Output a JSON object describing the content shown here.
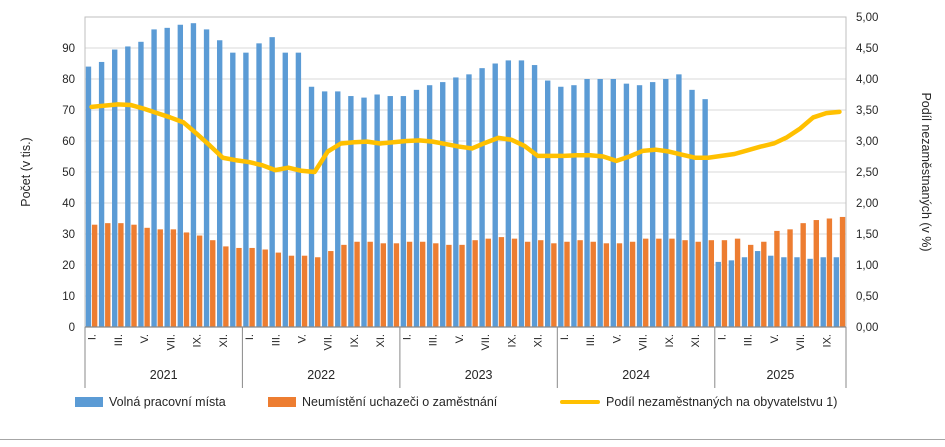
{
  "chart_data": {
    "type": "combo-bar-line",
    "title": "",
    "left_axis": {
      "title": "Počet (v tis.)",
      "min": 0,
      "max": 100,
      "step": 10,
      "tick_labels": [
        "0",
        "10",
        "20",
        "30",
        "40",
        "50",
        "60",
        "70",
        "80",
        "90"
      ]
    },
    "right_axis": {
      "title": "Podíl nezaměstnaných (v %)",
      "min": 0,
      "max": 5,
      "step": 0.5,
      "tick_labels": [
        "0,00",
        "0,50",
        "1,00",
        "1,50",
        "2,00",
        "2,50",
        "3,00",
        "3,50",
        "4,00",
        "4,50",
        "5,00"
      ]
    },
    "x_axis": {
      "years": [
        {
          "label": "2021",
          "months": 12
        },
        {
          "label": "2022",
          "months": 12
        },
        {
          "label": "2023",
          "months": 12
        },
        {
          "label": "2024",
          "months": 12
        },
        {
          "label": "2025",
          "months": 10
        }
      ],
      "tick_months": [
        1,
        3,
        5,
        7,
        9,
        11
      ],
      "tick_labels": [
        "I.",
        "III.",
        "V.",
        "VII.",
        "IX.",
        "XI."
      ]
    },
    "grid": true,
    "legend_position": "bottom",
    "series": [
      {
        "name": "Volná pracovní místa",
        "type": "bar",
        "axis": "left",
        "color": "#5B9BD5",
        "values": [
          84,
          85.5,
          89.5,
          90.5,
          92,
          96,
          96.5,
          97.5,
          98,
          96,
          92.5,
          88.5,
          88.5,
          91.5,
          93.5,
          88.5,
          88.5,
          77.5,
          76,
          76,
          74.5,
          74,
          75,
          74.5,
          74.5,
          76.5,
          78,
          79,
          80.5,
          81.5,
          83.5,
          85,
          86,
          86,
          84.5,
          79.5,
          77.5,
          78,
          80,
          80,
          80,
          78.5,
          78,
          79,
          80,
          81.5,
          76.5,
          73.5,
          21,
          21.5,
          22.5,
          24.5,
          23,
          22.5,
          22.5,
          22,
          22.5,
          22.5
        ]
      },
      {
        "name": "Neumístění uchazeči o zaměstnání",
        "type": "bar",
        "axis": "left",
        "color": "#ED7D31",
        "values": [
          33,
          33.5,
          33.5,
          33,
          32,
          31.5,
          31.5,
          30.5,
          29.5,
          28,
          26,
          25.5,
          25.5,
          25,
          24,
          23,
          23,
          22.5,
          24.5,
          26.5,
          27.5,
          27.5,
          27,
          27,
          27.5,
          27.5,
          27,
          26.5,
          26.5,
          28,
          28.5,
          29,
          28.5,
          27.5,
          28,
          27,
          27.5,
          28,
          27.5,
          27,
          27,
          27.5,
          28.5,
          28.5,
          28.5,
          28,
          27.5,
          28,
          28,
          28.5,
          26.5,
          27.5,
          31,
          31.5,
          33.5,
          34.5,
          35,
          35.5
        ]
      },
      {
        "name": "Podíl nezaměstnaných na obyvatelstvu 1)",
        "type": "line",
        "axis": "right",
        "color": "#FFC000",
        "values": [
          3.55,
          3.57,
          3.59,
          3.58,
          3.52,
          3.45,
          3.38,
          3.3,
          3.12,
          2.93,
          2.73,
          2.69,
          2.66,
          2.61,
          2.53,
          2.57,
          2.52,
          2.5,
          2.83,
          2.96,
          2.98,
          2.99,
          2.96,
          2.98,
          3.0,
          3.01,
          2.99,
          2.95,
          2.91,
          2.88,
          2.97,
          3.05,
          3.02,
          2.92,
          2.76,
          2.76,
          2.76,
          2.77,
          2.77,
          2.75,
          2.68,
          2.75,
          2.84,
          2.86,
          2.83,
          2.78,
          2.73,
          2.73,
          2.76,
          2.79,
          2.85,
          2.91,
          2.96,
          3.06,
          3.2,
          3.38,
          3.45,
          3.47
        ]
      }
    ],
    "colors": {
      "gridline": "#D9D9D9",
      "plot_border": "#BFBFBF",
      "axis_line": "#898989",
      "text": "#262626"
    }
  },
  "legend": {
    "items": [
      {
        "label": "Volná pracovní místa"
      },
      {
        "label": "Neumístění uchazeči o zaměstnání"
      },
      {
        "label": "Podíl nezaměstnaných na obyvatelstvu 1)"
      }
    ]
  }
}
